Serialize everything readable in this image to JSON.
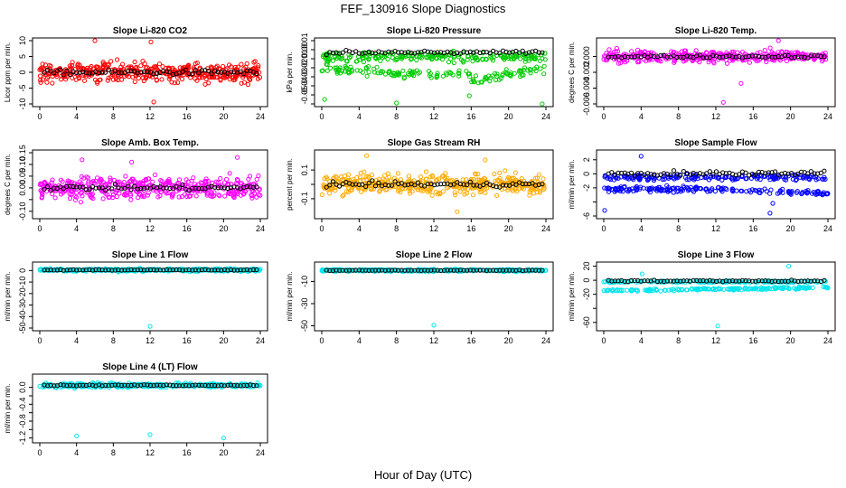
{
  "figure": {
    "title": "FEF_130916  Slope Diagnostics",
    "common_xlabel": "Hour of Day (UTC)"
  },
  "chart_data": [
    {
      "type": "scatter",
      "title": "Slope Li-820 CO2",
      "ylabel": "Licor ppm per min.",
      "xlim": [
        0,
        24
      ],
      "ylim": [
        -10,
        10
      ],
      "xticks": [
        0,
        4,
        8,
        12,
        16,
        20,
        24
      ],
      "yticks": [
        -10,
        -5,
        0,
        5,
        10
      ],
      "color": "#ff0000",
      "pattern": "wide",
      "center": 0,
      "spread": 3.0,
      "outliers": [
        [
          6.0,
          10.2
        ],
        [
          12.4,
          -9.4
        ],
        [
          12.1,
          9.6
        ]
      ]
    },
    {
      "type": "scatter",
      "title": "Slope Li-820 Pressure",
      "ylabel": "kPa per min.",
      "xlim": [
        0,
        24
      ],
      "ylim": [
        -0.06,
        0.01
      ],
      "xticks": [
        0,
        4,
        8,
        12,
        16,
        20,
        24
      ],
      "yticks": [
        -0.06,
        -0.05,
        -0.04,
        -0.03,
        -0.02,
        -0.01,
        0.0,
        0.01
      ],
      "ytickLabels": [
        "",
        "-0.05",
        "-0.04",
        "-0.03",
        "-0.02",
        "-0.01",
        "0.00",
        "0.01"
      ],
      "color": "#00cc00",
      "pattern": "pressure",
      "center": -0.005,
      "spread": 0.008,
      "outliers": [
        [
          0.3,
          -0.055
        ],
        [
          8.0,
          -0.059
        ],
        [
          15.8,
          -0.051
        ],
        [
          23.6,
          -0.06
        ]
      ]
    },
    {
      "type": "scatter",
      "title": "Slope Li-820 Temp.",
      "ylabel": "degrees C per min.",
      "xlim": [
        0,
        24
      ],
      "ylim": [
        -0.006,
        0.002
      ],
      "xticks": [
        0,
        4,
        8,
        12,
        16,
        20,
        24
      ],
      "yticks": [
        -0.006,
        -0.004,
        -0.002,
        0.0
      ],
      "ytickLabels": [
        "-0.006",
        "-0.004",
        "-0.002",
        "0.000"
      ],
      "color": "#ff00ff",
      "pattern": "narrow",
      "center": 0.0,
      "spread": 0.0007,
      "outliers": [
        [
          12.8,
          -0.0058
        ],
        [
          18.7,
          0.0024
        ],
        [
          14.7,
          -0.0034
        ]
      ]
    },
    {
      "type": "scatter",
      "title": "Slope Amb. Box Temp.",
      "ylabel": "degrees C per min.",
      "xlim": [
        0,
        24
      ],
      "ylim": [
        -0.12,
        0.15
      ],
      "xticks": [
        0,
        4,
        8,
        12,
        16,
        20,
        24
      ],
      "yticks": [
        -0.1,
        -0.05,
        0.0,
        0.05,
        0.1,
        0.15
      ],
      "ytickLabels": [
        "-0.10",
        "",
        "0.00",
        "0.05",
        "0.10",
        "0.15"
      ],
      "color": "#ff00ff",
      "pattern": "wide",
      "center": 0.0,
      "spread": 0.045,
      "outliers": [
        [
          21.5,
          0.13
        ],
        [
          4.6,
          0.12
        ],
        [
          10.0,
          0.11
        ]
      ]
    },
    {
      "type": "scatter",
      "title": "Slope Gas Stream RH",
      "ylabel": "percent per min.",
      "xlim": [
        0,
        24
      ],
      "ylim": [
        -0.22,
        0.22
      ],
      "xticks": [
        0,
        4,
        8,
        12,
        16,
        20,
        24
      ],
      "yticks": [
        -0.1,
        0.0,
        0.1
      ],
      "ytickLabels": [
        "-0.1",
        "",
        "0.1"
      ],
      "color": "#ffaa00",
      "pattern": "wide",
      "center": 0.0,
      "spread": 0.07,
      "outliers": [
        [
          4.8,
          0.2
        ],
        [
          14.5,
          -0.19
        ],
        [
          17.5,
          0.17
        ]
      ]
    },
    {
      "type": "scatter",
      "title": "Slope Sample Flow",
      "ylabel": "ml/min per min.",
      "xlim": [
        0,
        24
      ],
      "ylim": [
        -6,
        3
      ],
      "xticks": [
        0,
        4,
        8,
        12,
        16,
        20,
        24
      ],
      "yticks": [
        -6,
        -4,
        -2,
        0,
        2
      ],
      "ytickLabels": [
        "-6",
        "",
        "-2",
        "0",
        "2"
      ],
      "color": "#0000ff",
      "pattern": "flow",
      "center": 0.0,
      "spread": 0.5,
      "outliers": [
        [
          0.1,
          -5.2
        ],
        [
          17.8,
          -5.6
        ],
        [
          18.1,
          -4.2
        ],
        [
          4.0,
          2.5
        ]
      ]
    },
    {
      "type": "scatter",
      "title": "Slope Line 1 Flow",
      "ylabel": "ml/min per min.",
      "xlim": [
        0,
        24
      ],
      "ylim": [
        -50,
        5
      ],
      "xticks": [
        0,
        4,
        8,
        12,
        16,
        20,
        24
      ],
      "yticks": [
        -50,
        -40,
        -30,
        -20,
        -10,
        0
      ],
      "ytickLabels": [
        "-50",
        "-40",
        "-30",
        "-20",
        "-10",
        "0"
      ],
      "color": "#00e5ee",
      "pattern": "line",
      "center": 0.5,
      "spread": 1.2,
      "outliers": [
        [
          12.0,
          -48.5
        ]
      ]
    },
    {
      "type": "scatter",
      "title": "Slope Line 2 Flow",
      "ylabel": "ml/min per min.",
      "xlim": [
        0,
        24
      ],
      "ylim": [
        -52,
        5
      ],
      "xticks": [
        0,
        4,
        8,
        12,
        16,
        20,
        24
      ],
      "yticks": [
        -50,
        -30,
        -10
      ],
      "ytickLabels": [
        "-50",
        "-30",
        "-10"
      ],
      "color": "#00e5ee",
      "pattern": "line",
      "center": 0.0,
      "spread": 1.0,
      "outliers": [
        [
          12.0,
          -49.5
        ]
      ]
    },
    {
      "type": "scatter",
      "title": "Slope Line 3 Flow",
      "ylabel": "ml/min per min.",
      "xlim": [
        0,
        24
      ],
      "ylim": [
        -68,
        22
      ],
      "xticks": [
        0,
        4,
        8,
        12,
        16,
        20,
        24
      ],
      "yticks": [
        -60,
        -40,
        -20,
        0,
        20
      ],
      "ytickLabels": [
        "-60",
        "",
        "-20",
        "0",
        "20"
      ],
      "color": "#00e5ee",
      "pattern": "line3",
      "center": 0.0,
      "spread": 2.0,
      "outliers": [
        [
          12.2,
          -65
        ],
        [
          19.8,
          20
        ],
        [
          4.1,
          9
        ]
      ]
    },
    {
      "type": "scatter",
      "title": "Slope Line 4 (LT) Flow",
      "ylabel": "ml/min per min.",
      "xlim": [
        0,
        24
      ],
      "ylim": [
        -1.25,
        0.25
      ],
      "xticks": [
        0,
        4,
        8,
        12,
        16,
        20,
        24
      ],
      "yticks": [
        -1.2,
        -1.0,
        -0.8,
        -0.6,
        -0.4,
        -0.2,
        0.0
      ],
      "ytickLabels": [
        "-1.2",
        "",
        "-0.8",
        "",
        "-0.4",
        "",
        "0.0"
      ],
      "color": "#00e5ee",
      "pattern": "line",
      "center": 0.05,
      "spread": 0.05,
      "outliers": [
        [
          4.0,
          -1.15
        ],
        [
          12.0,
          -1.12
        ],
        [
          20.0,
          -1.2
        ]
      ]
    }
  ]
}
